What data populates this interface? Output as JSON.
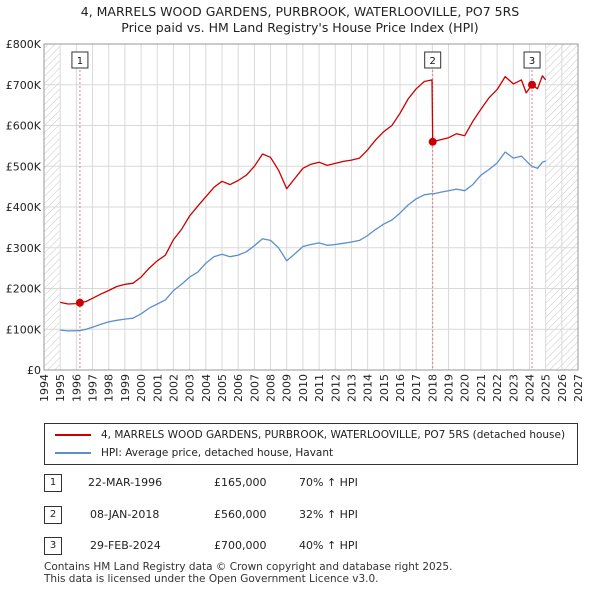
{
  "chart_data": {
    "type": "line",
    "title": "4, MARRELS WOOD GARDENS, PURBROOK, WATERLOOVILLE, PO7 5RS",
    "subtitle": "Price paid vs. HM Land Registry's House Price Index (HPI)",
    "xlim": [
      1994,
      2027
    ],
    "ylim": [
      0,
      800000
    ],
    "x_ticks": [
      "1994",
      "1995",
      "1996",
      "1997",
      "1998",
      "1999",
      "2000",
      "2001",
      "2002",
      "2003",
      "2004",
      "2005",
      "2006",
      "2007",
      "2008",
      "2009",
      "2010",
      "2011",
      "2012",
      "2013",
      "2014",
      "2015",
      "2016",
      "2017",
      "2018",
      "2019",
      "2020",
      "2021",
      "2022",
      "2023",
      "2024",
      "2025",
      "2026",
      "2027"
    ],
    "y_ticks": [
      {
        "value": 0,
        "label": "£0"
      },
      {
        "value": 100000,
        "label": "£100K"
      },
      {
        "value": 200000,
        "label": "£200K"
      },
      {
        "value": 300000,
        "label": "£300K"
      },
      {
        "value": 400000,
        "label": "£400K"
      },
      {
        "value": 500000,
        "label": "£500K"
      },
      {
        "value": 600000,
        "label": "£600K"
      },
      {
        "value": 700000,
        "label": "£700K"
      },
      {
        "value": 800000,
        "label": "£800K"
      }
    ],
    "grid": true,
    "data_start": 1995.0,
    "data_end": 2025.0,
    "series": [
      {
        "name": "4, MARRELS WOOD GARDENS, PURBROOK, WATERLOOVILLE, PO7 5RS (detached house)",
        "color": "#cc0000",
        "points": [
          [
            1995.0,
            166000
          ],
          [
            1995.5,
            162000
          ],
          [
            1996.0,
            163000
          ],
          [
            1996.22,
            165000
          ],
          [
            1996.6,
            168000
          ],
          [
            1997.0,
            176000
          ],
          [
            1997.5,
            186000
          ],
          [
            1998.0,
            195000
          ],
          [
            1998.5,
            205000
          ],
          [
            1999.0,
            210000
          ],
          [
            1999.5,
            213000
          ],
          [
            2000.0,
            228000
          ],
          [
            2000.5,
            250000
          ],
          [
            2001.0,
            268000
          ],
          [
            2001.5,
            282000
          ],
          [
            2002.0,
            320000
          ],
          [
            2002.5,
            345000
          ],
          [
            2003.0,
            378000
          ],
          [
            2003.5,
            402000
          ],
          [
            2004.0,
            425000
          ],
          [
            2004.5,
            448000
          ],
          [
            2005.0,
            463000
          ],
          [
            2005.5,
            455000
          ],
          [
            2006.0,
            465000
          ],
          [
            2006.5,
            478000
          ],
          [
            2007.0,
            500000
          ],
          [
            2007.5,
            530000
          ],
          [
            2008.0,
            522000
          ],
          [
            2008.5,
            490000
          ],
          [
            2009.0,
            445000
          ],
          [
            2009.5,
            470000
          ],
          [
            2010.0,
            495000
          ],
          [
            2010.5,
            505000
          ],
          [
            2011.0,
            510000
          ],
          [
            2011.5,
            502000
          ],
          [
            2012.0,
            507000
          ],
          [
            2012.5,
            512000
          ],
          [
            2013.0,
            515000
          ],
          [
            2013.5,
            520000
          ],
          [
            2014.0,
            540000
          ],
          [
            2014.5,
            565000
          ],
          [
            2015.0,
            585000
          ],
          [
            2015.5,
            600000
          ],
          [
            2016.0,
            630000
          ],
          [
            2016.5,
            665000
          ],
          [
            2017.0,
            690000
          ],
          [
            2017.5,
            708000
          ],
          [
            2017.98,
            712000
          ],
          [
            2018.02,
            560000
          ],
          [
            2018.5,
            565000
          ],
          [
            2019.0,
            570000
          ],
          [
            2019.5,
            580000
          ],
          [
            2020.0,
            575000
          ],
          [
            2020.5,
            610000
          ],
          [
            2021.0,
            640000
          ],
          [
            2021.5,
            668000
          ],
          [
            2022.0,
            688000
          ],
          [
            2022.5,
            720000
          ],
          [
            2023.0,
            702000
          ],
          [
            2023.5,
            712000
          ],
          [
            2023.8,
            680000
          ],
          [
            2024.16,
            700000
          ],
          [
            2024.5,
            690000
          ],
          [
            2024.8,
            722000
          ],
          [
            2025.0,
            712000
          ]
        ]
      },
      {
        "name": "HPI: Average price, detached house, Havant",
        "color": "#5a8fce",
        "points": [
          [
            1995.0,
            98000
          ],
          [
            1995.5,
            96000
          ],
          [
            1996.0,
            96500
          ],
          [
            1996.22,
            97000
          ],
          [
            1996.6,
            100000
          ],
          [
            1997.0,
            105000
          ],
          [
            1997.5,
            112000
          ],
          [
            1998.0,
            118000
          ],
          [
            1998.5,
            122000
          ],
          [
            1999.0,
            125000
          ],
          [
            1999.5,
            127000
          ],
          [
            2000.0,
            138000
          ],
          [
            2000.5,
            152000
          ],
          [
            2001.0,
            162000
          ],
          [
            2001.5,
            172000
          ],
          [
            2002.0,
            195000
          ],
          [
            2002.5,
            210000
          ],
          [
            2003.0,
            228000
          ],
          [
            2003.5,
            240000
          ],
          [
            2004.0,
            262000
          ],
          [
            2004.5,
            278000
          ],
          [
            2005.0,
            284000
          ],
          [
            2005.5,
            278000
          ],
          [
            2006.0,
            282000
          ],
          [
            2006.5,
            290000
          ],
          [
            2007.0,
            305000
          ],
          [
            2007.5,
            322000
          ],
          [
            2008.0,
            318000
          ],
          [
            2008.5,
            300000
          ],
          [
            2009.0,
            268000
          ],
          [
            2009.5,
            285000
          ],
          [
            2010.0,
            303000
          ],
          [
            2010.5,
            308000
          ],
          [
            2011.0,
            312000
          ],
          [
            2011.5,
            306000
          ],
          [
            2012.0,
            308000
          ],
          [
            2012.5,
            311000
          ],
          [
            2013.0,
            314000
          ],
          [
            2013.5,
            318000
          ],
          [
            2014.0,
            330000
          ],
          [
            2014.5,
            345000
          ],
          [
            2015.0,
            358000
          ],
          [
            2015.5,
            368000
          ],
          [
            2016.0,
            385000
          ],
          [
            2016.5,
            405000
          ],
          [
            2017.0,
            420000
          ],
          [
            2017.5,
            430000
          ],
          [
            2017.98,
            433000
          ],
          [
            2018.02,
            432000
          ],
          [
            2018.5,
            436000
          ],
          [
            2019.0,
            440000
          ],
          [
            2019.5,
            444000
          ],
          [
            2020.0,
            440000
          ],
          [
            2020.5,
            455000
          ],
          [
            2021.0,
            478000
          ],
          [
            2021.5,
            492000
          ],
          [
            2022.0,
            508000
          ],
          [
            2022.5,
            535000
          ],
          [
            2023.0,
            520000
          ],
          [
            2023.5,
            525000
          ],
          [
            2024.0,
            505000
          ],
          [
            2024.16,
            500000
          ],
          [
            2024.5,
            495000
          ],
          [
            2024.8,
            510000
          ],
          [
            2025.0,
            513000
          ]
        ]
      }
    ],
    "annotations": [
      {
        "label": "1",
        "x": 1996.22,
        "y": 165000
      },
      {
        "label": "2",
        "x": 2018.02,
        "y": 560000
      },
      {
        "label": "3",
        "x": 2024.16,
        "y": 700000
      }
    ]
  },
  "legend": [
    {
      "label": "4, MARRELS WOOD GARDENS, PURBROOK, WATERLOOVILLE, PO7 5RS (detached house)",
      "color": "#cc0000"
    },
    {
      "label": "HPI: Average price, detached house, Havant",
      "color": "#5a8fce"
    }
  ],
  "transactions": [
    {
      "num": "1",
      "date": "22-MAR-1996",
      "price": "£165,000",
      "hpi": "70% ↑ HPI"
    },
    {
      "num": "2",
      "date": "08-JAN-2018",
      "price": "£560,000",
      "hpi": "32% ↑ HPI"
    },
    {
      "num": "3",
      "date": "29-FEB-2024",
      "price": "£700,000",
      "hpi": "40% ↑ HPI"
    }
  ],
  "footer": {
    "line1": "Contains HM Land Registry data © Crown copyright and database right 2025.",
    "line2": "This data is licensed under the Open Government Licence v3.0."
  }
}
